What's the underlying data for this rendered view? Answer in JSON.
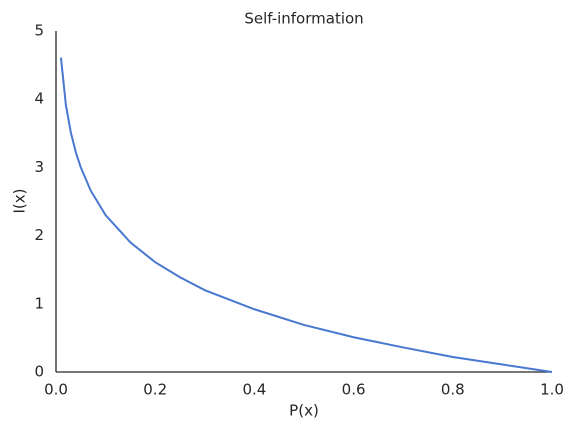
{
  "chart_data": {
    "type": "line",
    "title": "Self-information",
    "x_label": "P(x)",
    "y_label": "I(x)",
    "x": [
      0.01,
      0.02,
      0.03,
      0.04,
      0.05,
      0.07,
      0.1,
      0.15,
      0.2,
      0.25,
      0.3,
      0.4,
      0.5,
      0.6,
      0.7,
      0.8,
      0.9,
      1.0
    ],
    "series": [
      {
        "name": "I(x)",
        "color": "#4878d0",
        "values": [
          4.61,
          3.91,
          3.51,
          3.22,
          3.0,
          2.66,
          2.3,
          1.9,
          1.61,
          1.39,
          1.2,
          0.92,
          0.69,
          0.51,
          0.36,
          0.22,
          0.11,
          0
        ]
      }
    ],
    "xlim": [
      0,
      1
    ],
    "ylim": [
      0,
      5
    ],
    "xticks": [
      {
        "value": 0,
        "label": "0.0"
      },
      {
        "value": 0.2,
        "label": "0.2"
      },
      {
        "value": 0.4,
        "label": "0.4"
      },
      {
        "value": 0.6,
        "label": "0.6"
      },
      {
        "value": 0.8,
        "label": "0.8"
      },
      {
        "value": 1,
        "label": "1.0"
      }
    ],
    "yticks": [
      0,
      1,
      2,
      3,
      4,
      5
    ],
    "grid": false
  }
}
